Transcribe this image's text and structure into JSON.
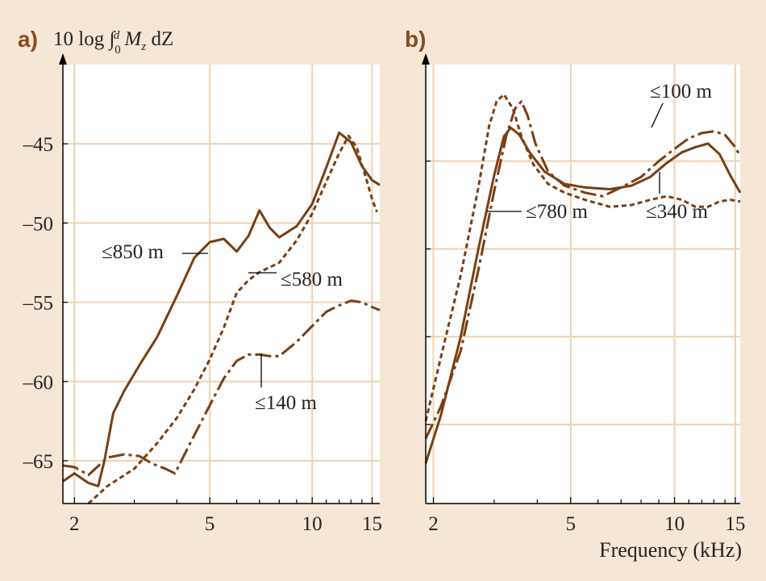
{
  "colors": {
    "background": "#f6e6d5",
    "plot_area": "#ffffff",
    "grid": "#ecd3b5",
    "curve": "#7a3e12",
    "axis": "#000000"
  },
  "chart_data": [
    {
      "type": "line",
      "panel": "a)",
      "ylabel": "10 log ∫0d Mz dZ",
      "ylabel_parts": {
        "prefix": "10 log ∫",
        "sub": "0",
        "sup": "d",
        "var": " M",
        "var_sub": "z",
        "rest": " dZ"
      },
      "xlabel": "",
      "xscale": "log",
      "xlim": [
        1.85,
        15.8
      ],
      "ylim": [
        -67.7,
        -40
      ],
      "xticks": [
        2,
        5,
        10,
        15
      ],
      "xtick_labels": [
        "2",
        "5",
        "10",
        "15"
      ],
      "yticks": [
        -45,
        -50,
        -55,
        -60,
        -65
      ],
      "ytick_labels": [
        "–45",
        "–50",
        "–55",
        "–60",
        "–65"
      ],
      "grid": true,
      "series": [
        {
          "name": "≤850 m",
          "dash": "solid",
          "x": [
            1.85,
            2.0,
            2.2,
            2.35,
            2.45,
            2.6,
            2.8,
            3.1,
            3.5,
            4.0,
            4.5,
            5.0,
            5.5,
            6.0,
            6.5,
            7.0,
            7.5,
            8.0,
            9.0,
            10.0,
            11.0,
            12.0,
            13.0,
            14.0,
            15.0,
            15.8
          ],
          "y": [
            -66.3,
            -65.8,
            -66.4,
            -66.6,
            -65.0,
            -62.0,
            -60.6,
            -59.0,
            -57.2,
            -54.6,
            -52.2,
            -51.2,
            -51.0,
            -51.8,
            -50.8,
            -49.2,
            -50.3,
            -50.9,
            -50.2,
            -48.8,
            -46.5,
            -44.3,
            -44.9,
            -46.4,
            -47.3,
            -47.6
          ]
        },
        {
          "name": "≤580 m",
          "dash": "dashed",
          "x": [
            2.2,
            2.5,
            3.0,
            3.5,
            4.0,
            4.5,
            5.0,
            5.5,
            6.0,
            6.5,
            7.0,
            8.0,
            9.0,
            10.0,
            11.0,
            12.0,
            12.8,
            13.5,
            14.5,
            15.0,
            15.5
          ],
          "y": [
            -67.7,
            -66.6,
            -65.5,
            -63.9,
            -62.3,
            -60.5,
            -58.6,
            -56.6,
            -54.4,
            -53.6,
            -53.1,
            -52.5,
            -51.1,
            -49.4,
            -47.4,
            -45.6,
            -44.5,
            -45.2,
            -47.4,
            -48.5,
            -49.3
          ]
        },
        {
          "name": "≤140 m",
          "dash": "longdash",
          "x": [
            1.85,
            2.0,
            2.2,
            2.5,
            2.8,
            3.1,
            3.4,
            3.7,
            3.95,
            4.4,
            5.0,
            5.5,
            6.0,
            6.5,
            7.0,
            7.5,
            8.0,
            9.0,
            10.0,
            11.0,
            12.0,
            13.0,
            14.0,
            15.0,
            15.8
          ],
          "y": [
            -65.3,
            -65.4,
            -65.9,
            -64.8,
            -64.6,
            -64.7,
            -65.2,
            -65.5,
            -65.8,
            -63.8,
            -61.5,
            -59.8,
            -58.7,
            -58.3,
            -58.3,
            -58.4,
            -58.4,
            -57.5,
            -56.5,
            -55.6,
            -55.2,
            -54.9,
            -55.0,
            -55.3,
            -55.5
          ]
        }
      ],
      "annotations": [
        {
          "text": "≤850 m",
          "series": "≤850 m"
        },
        {
          "text": "≤580 m",
          "series": "≤580 m"
        },
        {
          "text": "≤140 m",
          "series": "≤140 m"
        }
      ]
    },
    {
      "type": "line",
      "panel": "b)",
      "ylabel": "",
      "xlabel": "Frequency (kHz)",
      "xscale": "log",
      "xlim": [
        1.9,
        15.5
      ],
      "ylim": [
        -64.5,
        -39.5
      ],
      "xticks": [
        2,
        5,
        10,
        15
      ],
      "xtick_labels": [
        "2",
        "5",
        "10",
        "15"
      ],
      "yticks": [
        -45,
        -50,
        -55,
        -60
      ],
      "ytick_labels": [],
      "grid": true,
      "series": [
        {
          "name": "≤780 m",
          "dash": "solid",
          "x": [
            1.9,
            2.1,
            2.4,
            2.7,
            3.0,
            3.2,
            3.35,
            3.55,
            3.8,
            4.2,
            4.8,
            5.5,
            6.5,
            7.5,
            8.5,
            9.5,
            10.5,
            11.5,
            12.5,
            13.5,
            14.5,
            15.5
          ],
          "y": [
            -62.2,
            -59.5,
            -55.0,
            -50.0,
            -45.8,
            -43.6,
            -43.1,
            -43.5,
            -44.5,
            -45.6,
            -46.3,
            -46.5,
            -46.6,
            -46.4,
            -45.9,
            -45.1,
            -44.5,
            -44.2,
            -44.0,
            -44.6,
            -45.8,
            -46.8
          ]
        },
        {
          "name": "≤340 m",
          "dash": "dashed",
          "x": [
            1.9,
            2.1,
            2.4,
            2.7,
            2.9,
            3.05,
            3.2,
            3.4,
            3.6,
            3.9,
            4.3,
            4.8,
            5.5,
            6.5,
            7.5,
            8.5,
            9.5,
            10.5,
            11.5,
            12.5,
            13.5,
            14.5,
            15.5
          ],
          "y": [
            -59.8,
            -56.2,
            -51.5,
            -46.5,
            -43.0,
            -41.6,
            -41.2,
            -42.0,
            -43.6,
            -45.2,
            -46.3,
            -46.8,
            -47.2,
            -47.6,
            -47.5,
            -47.2,
            -47.0,
            -47.2,
            -47.6,
            -47.6,
            -47.3,
            -47.2,
            -47.3
          ]
        },
        {
          "name": "≤100 m",
          "dash": "longdash",
          "x": [
            1.9,
            2.1,
            2.4,
            2.7,
            3.0,
            3.25,
            3.45,
            3.6,
            3.75,
            3.95,
            4.3,
            4.8,
            5.5,
            6.2,
            7.0,
            8.0,
            9.0,
            10.0,
            11.0,
            12.0,
            13.0,
            14.0,
            15.0,
            15.5
          ],
          "y": [
            -60.8,
            -59.0,
            -55.8,
            -51.2,
            -46.7,
            -43.6,
            -42.0,
            -41.6,
            -42.4,
            -44.0,
            -45.6,
            -46.4,
            -46.8,
            -47.0,
            -46.5,
            -45.9,
            -45.0,
            -44.3,
            -43.7,
            -43.4,
            -43.3,
            -43.5,
            -44.2,
            -44.7
          ]
        }
      ],
      "annotations": [
        {
          "text": "≤100 m",
          "series": "≤100 m"
        },
        {
          "text": "≤780 m",
          "series": "≤780 m"
        },
        {
          "text": "≤340 m",
          "series": "≤340 m"
        }
      ]
    }
  ]
}
